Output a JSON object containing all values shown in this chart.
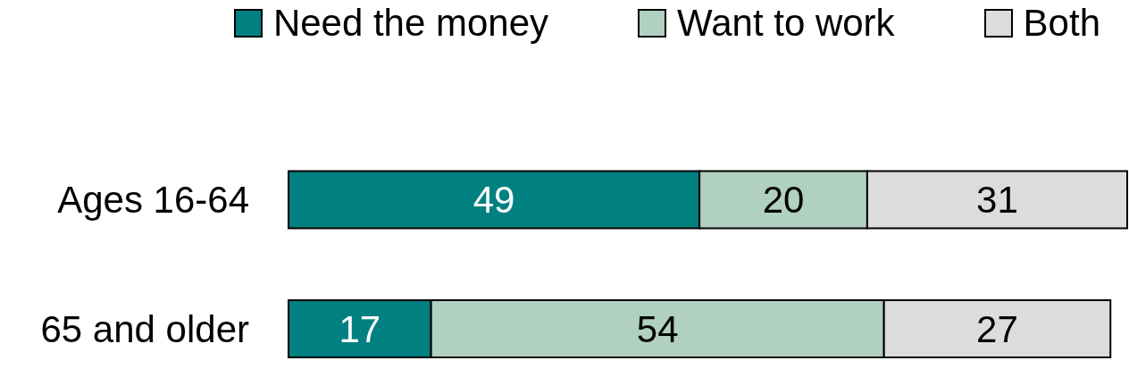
{
  "chart_data": {
    "type": "bar",
    "orientation": "horizontal",
    "stacked": true,
    "categories": [
      "Ages 16-64",
      "65 and older"
    ],
    "series": [
      {
        "name": "Need the money",
        "color": "#008080",
        "values": [
          49,
          17
        ]
      },
      {
        "name": "Want to work",
        "color": "#b0d0c0",
        "values": [
          20,
          54
        ]
      },
      {
        "name": "Both",
        "color": "#dcdcdc",
        "values": [
          31,
          27
        ]
      }
    ],
    "data_labels": true,
    "legend": "top",
    "grid": false
  }
}
